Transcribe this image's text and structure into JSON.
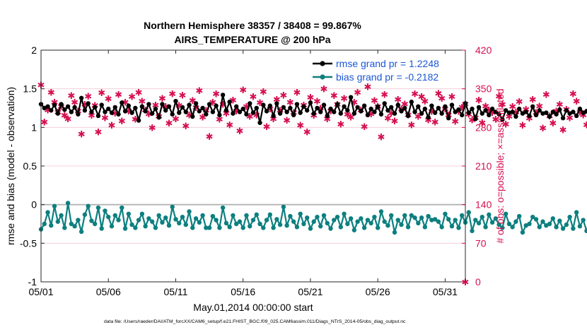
{
  "colors": {
    "rmse": "#000000",
    "bias": "#0d7f7f",
    "obs": "#d6104f",
    "legend_text": "#1a56d6",
    "grid": "#f0c8d4",
    "zero_line": "#b3b3b3"
  },
  "chart_data": {
    "type": "line",
    "title_line1": "Northern Hemisphere 38357 / 38408 = 99.867%",
    "title_line2": "AIRS_TEMPERATURE @ 200 hPa",
    "xlabel": "May.01,2014 00:00:00 start",
    "ylabel_left": "rmse and bias (model - observation)",
    "ylabel_right": "# of obs: o=possible; ×=assimilated",
    "footnote": "data file: /Users/raeder/DAI/ATM_forcXX/CAM6_setup/f.e21.FHIST_BGC.f09_025.CAM6assim.011/Diags_NTrS_2014-05/obs_diag_output.nc",
    "xlim": [
      0,
      31.5
    ],
    "ylim_left": [
      -1,
      2
    ],
    "ylim_right": [
      0,
      420
    ],
    "x_ticks": [
      0,
      5,
      10,
      15,
      20,
      25,
      30
    ],
    "x_tick_labels": [
      "05/01",
      "05/06",
      "05/11",
      "05/16",
      "05/21",
      "05/26",
      "05/31"
    ],
    "y_left_ticks": [
      -1,
      -0.5,
      0,
      0.5,
      1,
      1.5,
      2
    ],
    "y_left_tick_labels": [
      "-1",
      "-0.5",
      "0",
      "0.5",
      "1",
      "1.5",
      "2"
    ],
    "y_right_ticks": [
      0,
      70,
      140,
      210,
      280,
      350,
      420
    ],
    "y_right_tick_labels": [
      "0",
      "70",
      "140",
      "210",
      "280",
      "350",
      "420"
    ],
    "x_step_days": 0.25,
    "legend": {
      "position": "top-right",
      "entries": [
        "rmse grand pr = 1.2248",
        "bias grand pr = -0.2182"
      ]
    },
    "series": [
      {
        "name": "rmse",
        "axis": "left",
        "values": [
          1.3,
          1.25,
          1.27,
          1.22,
          1.29,
          1.18,
          1.3,
          1.23,
          1.27,
          1.2,
          1.26,
          1.17,
          1.38,
          1.22,
          1.31,
          1.2,
          1.26,
          1.15,
          1.29,
          1.2,
          1.24,
          1.19,
          1.26,
          1.17,
          1.32,
          1.21,
          1.28,
          1.19,
          1.25,
          1.09,
          1.27,
          1.21,
          1.3,
          1.18,
          1.24,
          1.13,
          1.3,
          1.22,
          1.27,
          1.17,
          1.34,
          1.19,
          1.26,
          1.2,
          1.29,
          1.14,
          1.31,
          1.21,
          1.25,
          1.17,
          1.3,
          1.2,
          1.28,
          1.16,
          1.42,
          1.22,
          1.33,
          1.18,
          1.27,
          1.2,
          1.24,
          1.17,
          1.31,
          1.19,
          1.25,
          1.06,
          1.29,
          1.21,
          1.28,
          1.15,
          1.31,
          1.18,
          1.26,
          1.2,
          1.25,
          1.16,
          1.3,
          1.19,
          1.27,
          1.22,
          1.32,
          1.18,
          1.25,
          1.2,
          1.29,
          1.15,
          1.24,
          1.2,
          1.3,
          1.18,
          1.27,
          1.22,
          1.39,
          1.18,
          1.26,
          1.21,
          1.28,
          1.16,
          1.24,
          1.2,
          1.27,
          1.17,
          1.31,
          1.22,
          1.26,
          1.18,
          1.29,
          1.21,
          1.25,
          1.15,
          1.33,
          1.2,
          1.27,
          1.18,
          1.24,
          1.13,
          1.28,
          1.19,
          1.25,
          1.18,
          1.27,
          1.12,
          1.29,
          1.2,
          1.23,
          1.16,
          1.31,
          1.19,
          1.24,
          1.11,
          1.26,
          1.18,
          1.22,
          1.16,
          1.24,
          1.2,
          1.17,
          1.1,
          1.22,
          1.19,
          1.2,
          1.14,
          1.24,
          1.18,
          1.2,
          1.15,
          1.27,
          1.16,
          1.22,
          1.18,
          1.19,
          1.14,
          1.2,
          1.17,
          1.23,
          1.12,
          1.22,
          1.18,
          1.2,
          1.15,
          1.24,
          1.19,
          1.21,
          1.14,
          1.28,
          1.17,
          1.2,
          1.16,
          1.23,
          1.13,
          1.21,
          1.18,
          1.2,
          1.15,
          1.22,
          1.17,
          1.24,
          1.13,
          1.21,
          1.18,
          1.19,
          1.16,
          1.22,
          1.12,
          1.2,
          1.17,
          1.23,
          1.14,
          1.26,
          1.17,
          1.2,
          1.15,
          1.29,
          1.18,
          1.21,
          1.15,
          1.23,
          1.16,
          1.2,
          1.13,
          1.18,
          1.17,
          1.21,
          1.14,
          1.26,
          1.15,
          1.22,
          1.17,
          1.2,
          1.12,
          1.17,
          1.16,
          1.2,
          1.15,
          1.17,
          1.13,
          1.2,
          1.15,
          1.23,
          1.16,
          1.21,
          1.17,
          1.2,
          1.16,
          1.13,
          1.18,
          1.17,
          1.13,
          1.21,
          1.16,
          1.17,
          1.13,
          1.21,
          1.16,
          1.19,
          1.17,
          1.23,
          1.17,
          1.21
        ]
      },
      {
        "name": "bias",
        "axis": "left",
        "values": [
          -0.32,
          -0.25,
          -0.1,
          -0.27,
          -0.02,
          -0.22,
          -0.14,
          -0.3,
          0.02,
          -0.25,
          -0.28,
          -0.2,
          -0.35,
          -0.13,
          -0.02,
          -0.21,
          -0.25,
          -0.04,
          -0.31,
          -0.08,
          -0.16,
          -0.28,
          -0.14,
          -0.2,
          -0.04,
          -0.31,
          -0.12,
          -0.26,
          -0.3,
          -0.2,
          -0.12,
          -0.28,
          -0.18,
          -0.22,
          -0.3,
          -0.14,
          -0.23,
          -0.17,
          -0.27,
          -0.03,
          -0.19,
          -0.24,
          -0.16,
          -0.26,
          -0.09,
          -0.3,
          -0.18,
          -0.23,
          -0.14,
          -0.3,
          -0.3,
          -0.15,
          -0.2,
          -0.3,
          -0.04,
          -0.24,
          -0.29,
          -0.14,
          -0.25,
          -0.22,
          -0.3,
          -0.14,
          -0.28,
          -0.2,
          -0.13,
          -0.25,
          -0.3,
          -0.2,
          -0.13,
          -0.3,
          -0.19,
          -0.26,
          -0.03,
          -0.27,
          -0.15,
          -0.22,
          -0.29,
          -0.12,
          -0.25,
          -0.17,
          -0.31,
          -0.22,
          -0.16,
          -0.28,
          -0.14,
          -0.24,
          -0.31,
          -0.2,
          -0.16,
          -0.29,
          -0.12,
          -0.25,
          -0.18,
          -0.33,
          -0.22,
          -0.18,
          -0.3,
          -0.2,
          -0.24,
          -0.16,
          -0.3,
          -0.09,
          -0.22,
          -0.27,
          -0.14,
          -0.36,
          -0.2,
          -0.26,
          -0.14,
          -0.29,
          -0.14,
          -0.17,
          -0.24,
          -0.17,
          -0.29,
          -0.15,
          -0.2,
          -0.19,
          -0.22,
          -0.29,
          -0.12,
          -0.19,
          -0.28,
          -0.2,
          -0.3,
          -0.14,
          -0.23,
          -0.1,
          -0.34,
          -0.2,
          -0.24,
          -0.16,
          -0.29,
          -0.13,
          -0.23,
          -0.18,
          -0.26,
          -0.3,
          -0.12,
          -0.25,
          -0.29,
          -0.22,
          -0.15,
          -0.36,
          -0.27,
          -0.25,
          -0.16,
          -0.19,
          -0.29,
          -0.22,
          -0.27,
          -0.25,
          -0.18,
          -0.29,
          -0.21,
          -0.31,
          -0.26,
          -0.16,
          -0.31,
          -0.1,
          -0.28,
          -0.2,
          -0.34,
          -0.22,
          -0.18,
          -0.3,
          -0.25,
          -0.1,
          -0.2,
          -0.27,
          0.04,
          -0.24,
          -0.18,
          -0.29,
          -0.16,
          -0.02,
          -0.28,
          -0.22,
          -0.19,
          -0.26,
          -0.31,
          -0.2,
          -0.22,
          -0.16,
          -0.3,
          -0.22,
          -0.18,
          -0.25,
          -0.34,
          -0.22,
          -0.19,
          -0.29,
          -0.14,
          -0.25,
          -0.17,
          -0.3,
          -0.22,
          -0.16,
          -0.26,
          -0.2,
          0.0,
          -0.18,
          -0.27,
          -0.14,
          -0.23,
          -0.31,
          -0.12,
          -0.21,
          -0.28,
          -0.18,
          -0.22,
          0.04,
          -0.24,
          -0.2,
          -0.26,
          -0.18,
          -0.3,
          -0.22,
          -0.16,
          -0.24,
          -0.29,
          -0.11,
          -0.23,
          -0.32,
          -0.18,
          -0.26,
          -0.13,
          -0.22,
          -0.18,
          -0.14,
          -0.27,
          -0.22,
          -0.22,
          -0.04,
          -0.29,
          -0.2,
          -0.13,
          -0.33,
          -0.18,
          -0.22,
          -0.12,
          -0.28
        ]
      },
      {
        "name": "obs_assimilated",
        "axis": "right",
        "values": [
          357,
          290,
          312,
          344,
          326,
          308,
          318,
          302,
          296,
          338,
          326,
          310,
          268,
          322,
          337,
          302,
          320,
          272,
          343,
          298,
          332,
          284,
          306,
          340,
          292,
          326,
          310,
          336,
          295,
          344,
          328,
          312,
          305,
          280,
          321,
          300,
          333,
          318,
          288,
          341,
          296,
          320,
          339,
          283,
          303,
          329,
          316,
          347,
          299,
          311,
          264,
          326,
          341,
          295,
          322,
          306,
          285,
          330,
          310,
          274,
          348,
          318,
          300,
          336,
          303,
          325,
          345,
          282,
          314,
          296,
          331,
          311,
          339,
          293,
          326,
          307,
          344,
          284,
          321,
          272,
          335,
          302,
          328,
          315,
          350,
          296,
          310,
          338,
          322,
          286,
          333,
          304,
          299,
          326,
          344,
          312,
          282,
          354,
          305,
          329,
          318,
          263,
          340,
          297,
          306,
          292,
          331,
          314,
          323,
          303,
          285,
          341,
          300,
          336,
          328,
          294,
          309,
          290,
          342,
          333,
          314,
          303,
          336,
          291,
          309,
          317,
          323,
          304,
          294,
          298,
          330,
          289,
          319,
          312,
          307,
          295,
          337,
          322,
          286,
          300,
          318,
          308,
          327,
          284,
          313,
          297,
          331,
          307,
          319,
          279,
          340,
          301,
          288,
          310,
          322,
          276,
          313,
          298,
          341,
          328,
          308,
          303,
          285,
          325,
          315,
          328,
          296,
          305,
          288,
          320,
          338,
          303,
          310,
          323,
          281,
          313,
          333,
          330,
          296,
          342,
          302,
          287,
          321,
          318,
          307,
          326,
          312,
          293,
          329,
          320,
          337,
          314,
          286,
          322,
          306,
          298,
          327,
          332,
          309,
          280,
          338,
          315,
          302,
          322,
          286,
          315,
          310,
          293,
          330,
          357,
          311,
          323,
          300,
          326,
          349,
          308,
          320,
          292,
          306,
          342,
          317,
          326,
          301,
          278,
          333,
          314,
          295,
          350,
          327,
          340,
          311,
          279,
          309,
          222,
          302,
          346,
          318,
          292,
          305,
          327,
          355,
          288,
          322,
          331,
          336
        ]
      }
    ]
  }
}
